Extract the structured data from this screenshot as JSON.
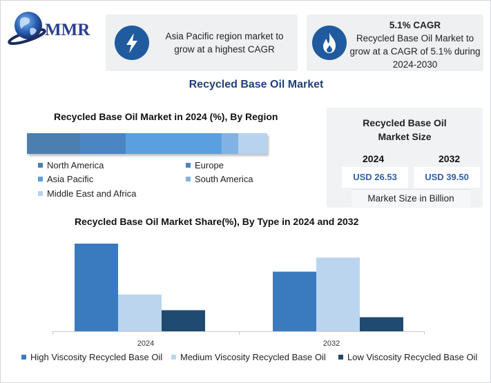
{
  "brand": {
    "logo_text": "MMR"
  },
  "cards": {
    "region": {
      "icon": "lightning-bolt-icon",
      "text": "Asia Pacific region market to grow at a highest CAGR"
    },
    "cagr": {
      "icon": "flame-icon",
      "headline": "5.1% CAGR",
      "text": "Recycled Base Oil Market to grow at a CAGR of 5.1% during 2024-2030"
    }
  },
  "main_title": "Recycled Base Oil Market",
  "market_size": {
    "title": "Recycled Base Oil Market Size",
    "year_a": "2024",
    "value_a": "USD 26.53",
    "year_b": "2032",
    "value_b": "USD 39.50",
    "unit_note": "Market Size in Billion"
  },
  "colors": {
    "north_america": "#4a7fb0",
    "europe": "#4b86c2",
    "asia_pacific": "#5a9fe0",
    "south_america": "#82b2e3",
    "middle_east_africa": "#b8d3ef",
    "high": "#3a7bc0",
    "medium": "#bcd5ee",
    "low": "#1f4a72"
  },
  "chart_data": [
    {
      "type": "bar",
      "orientation": "horizontal-stacked",
      "title": "Recycled Base Oil Market in 2024 (%), By Region",
      "categories": [
        "North America",
        "Europe",
        "Asia Pacific",
        "South America",
        "Middle East and Africa"
      ],
      "values": [
        22,
        19,
        40,
        7,
        12
      ],
      "legend": "bottom"
    },
    {
      "type": "bar",
      "title": "Recycled Base Oil Market Share(%), By Type in 2024 and 2032",
      "categories": [
        "2024",
        "2032"
      ],
      "series": [
        {
          "name": "High Viscosity Recycled Base Oil",
          "values": [
            50,
            34
          ]
        },
        {
          "name": "Medium Viscosity Recycled Base Oil",
          "values": [
            21,
            42
          ]
        },
        {
          "name": "Low Viscosity Recycled Base Oil",
          "values": [
            12,
            8
          ]
        }
      ],
      "ylim": [
        0,
        50
      ],
      "legend": "bottom",
      "grid": false
    }
  ]
}
